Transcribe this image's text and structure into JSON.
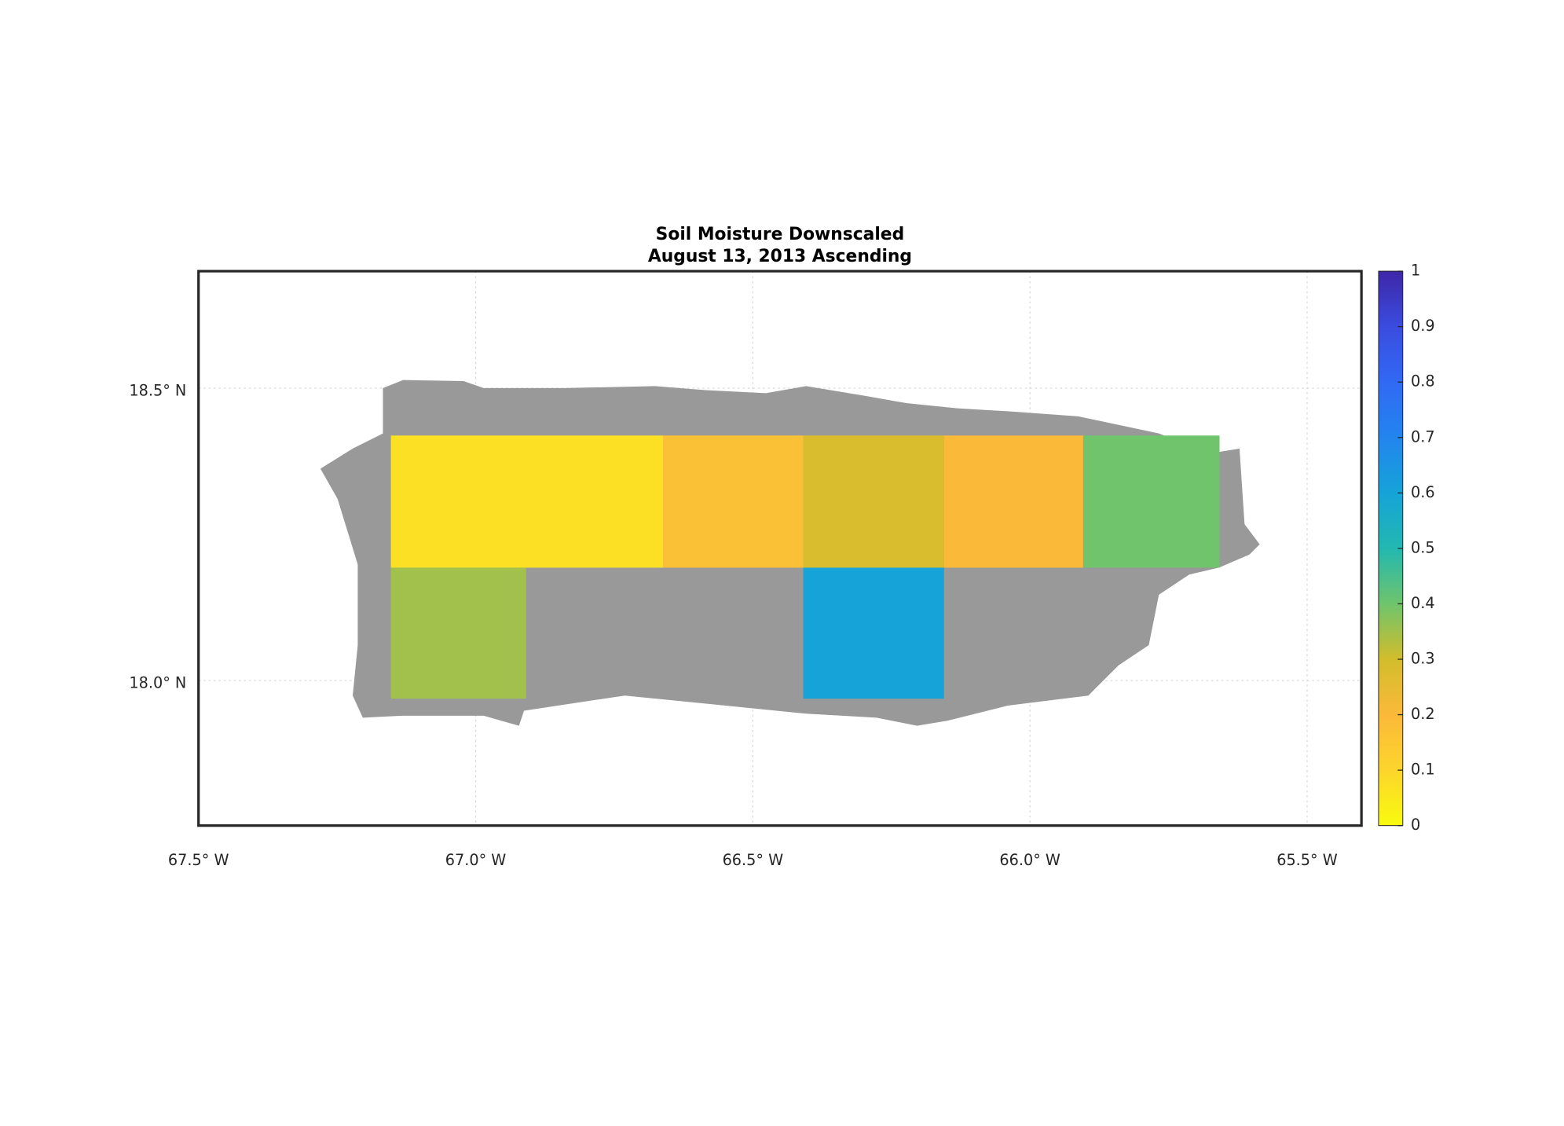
{
  "chart_data": {
    "type": "heatmap",
    "title": "Soil Moisture Downscaled",
    "subtitle": "August 13, 2013 Ascending",
    "xlim": [
      -67.5,
      -65.402
    ],
    "ylim": [
      17.752,
      18.7
    ],
    "xticks": [
      {
        "value": -67.5,
        "label": "67.5° W"
      },
      {
        "value": -67.0,
        "label": "67.0° W"
      },
      {
        "value": -66.5,
        "label": "66.5° W"
      },
      {
        "value": -66.0,
        "label": "66.0° W"
      },
      {
        "value": -65.5,
        "label": "65.5° W"
      }
    ],
    "yticks": [
      {
        "value": 18.0,
        "label": "18.0° N"
      },
      {
        "value": 18.5,
        "label": "18.5° N"
      }
    ],
    "grid": true,
    "clim": [
      0,
      1
    ],
    "cticks": [
      0,
      0.1,
      0.2,
      0.3,
      0.4,
      0.5,
      0.6,
      0.7,
      0.8,
      0.9,
      1
    ],
    "colormap": [
      "#f9fb0e",
      "#fcd52c",
      "#fbb93a",
      "#d2bd2c",
      "#6fc46c",
      "#22b8b0",
      "#16a3d8",
      "#2285ee",
      "#3169f5",
      "#3a4cdf",
      "#3e26a8"
    ],
    "tiles": [
      {
        "lon": [
          -67.153,
          -66.662
        ],
        "lat": [
          18.193,
          18.419
        ],
        "value": 0.07
      },
      {
        "lon": [
          -66.662,
          -66.409
        ],
        "lat": [
          18.193,
          18.419
        ],
        "value": 0.17
      },
      {
        "lon": [
          -66.409,
          -66.155
        ],
        "lat": [
          18.193,
          18.419
        ],
        "value": 0.28
      },
      {
        "lon": [
          -66.155,
          -65.904
        ],
        "lat": [
          18.193,
          18.419
        ],
        "value": 0.2
      },
      {
        "lon": [
          -65.904,
          -65.658
        ],
        "lat": [
          18.193,
          18.419
        ],
        "value": 0.4
      },
      {
        "lon": [
          -67.153,
          -66.909
        ],
        "lat": [
          17.969,
          18.193
        ],
        "value": 0.35
      },
      {
        "lon": [
          -66.409,
          -66.155
        ],
        "lat": [
          17.969,
          18.193
        ],
        "value": 0.6
      }
    ]
  }
}
